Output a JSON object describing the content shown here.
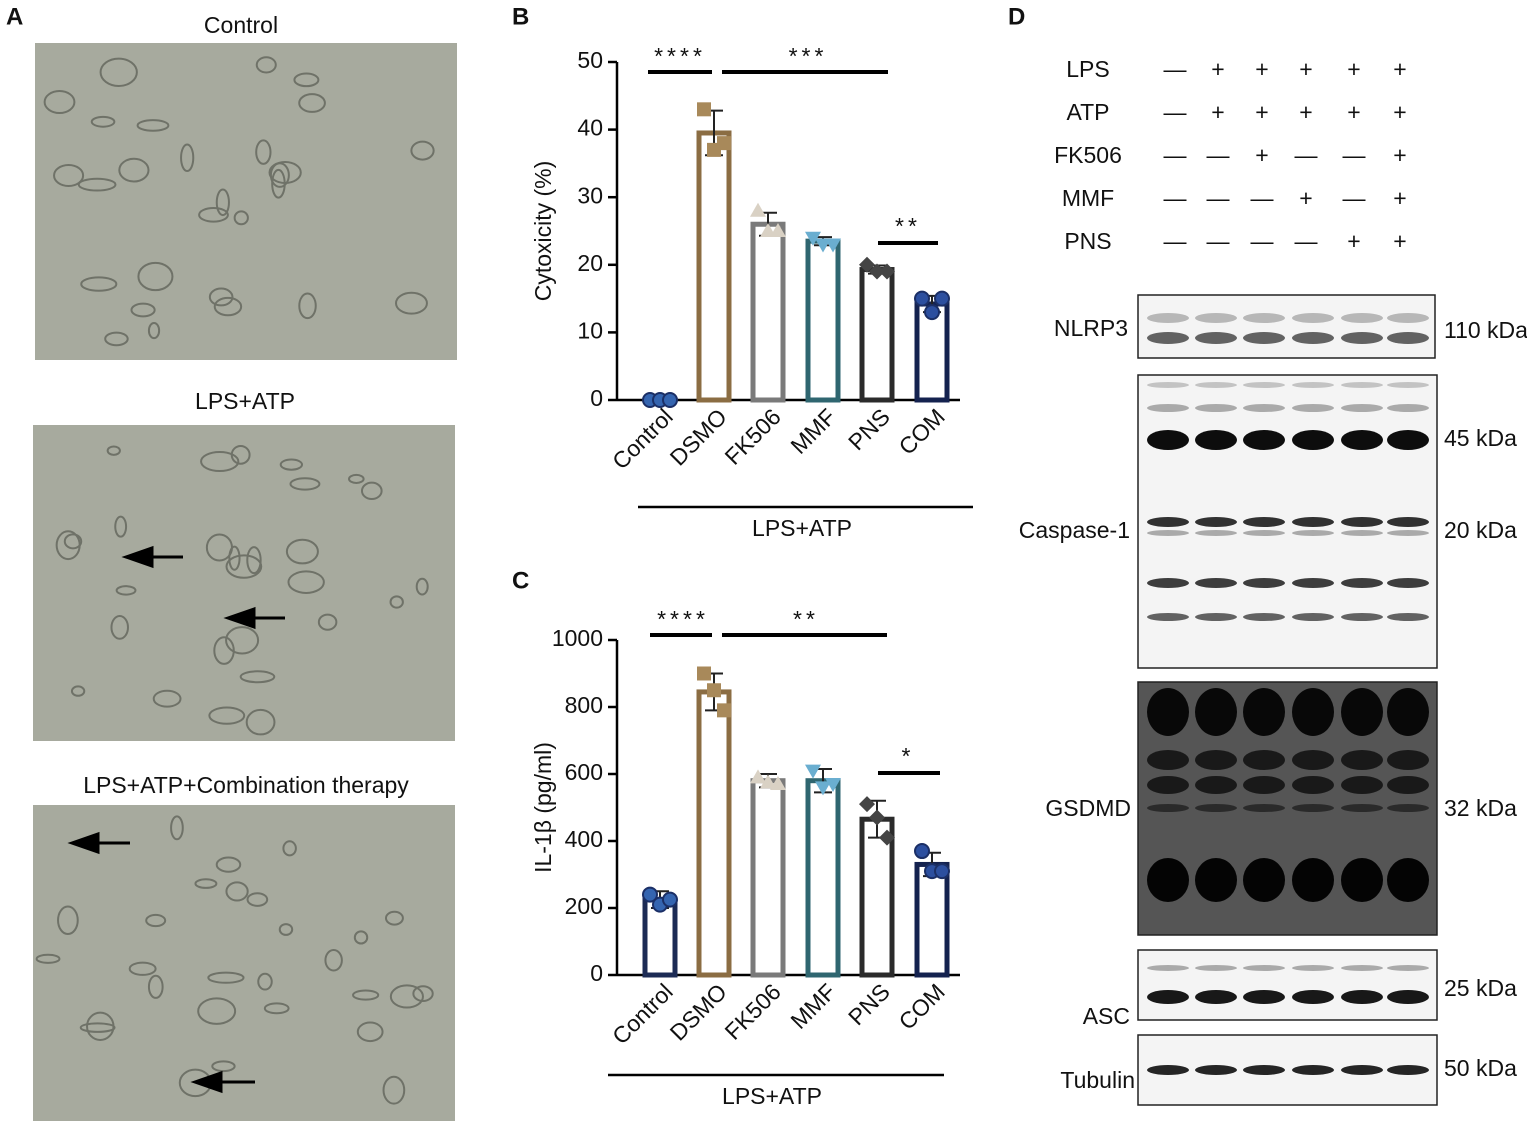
{
  "panels": {
    "a": {
      "letter": "A",
      "titles": [
        "Control",
        "LPS+ATP",
        "LPS+ATP+Combination therapy"
      ]
    },
    "d": {
      "letter": "D",
      "treatments": [
        {
          "label": "LPS",
          "signs": [
            "—",
            "+",
            "+",
            "+",
            "+",
            "+"
          ]
        },
        {
          "label": "ATP",
          "signs": [
            "—",
            "+",
            "+",
            "+",
            "+",
            "+"
          ]
        },
        {
          "label": "FK506",
          "signs": [
            "—",
            "—",
            "+",
            "—",
            "—",
            "+"
          ]
        },
        {
          "label": "MMF",
          "signs": [
            "—",
            "—",
            "—",
            "+",
            "—",
            "+"
          ]
        },
        {
          "label": "PNS",
          "signs": [
            "—",
            "—",
            "—",
            "—",
            "+",
            "+"
          ]
        }
      ],
      "blots": [
        {
          "name": "NLRP3",
          "sizes": [
            "110 kDa"
          ]
        },
        {
          "name": "Caspase-1",
          "sizes": [
            "45 kDa",
            "20 kDa"
          ]
        },
        {
          "name": "GSDMD",
          "sizes": [
            "32 kDa"
          ]
        },
        {
          "name": "ASC",
          "sizes": [
            "25 kDa"
          ]
        },
        {
          "name": "Tubulin",
          "sizes": [
            "50 kDa"
          ]
        }
      ]
    }
  },
  "chart_data": [
    {
      "type": "bar",
      "letter": "B",
      "y_label": "Cytoxicity (%)",
      "group_label": "LPS+ATP",
      "categories": [
        "Control",
        "DSMO",
        "FK506",
        "MMF",
        "PNS",
        "COM"
      ],
      "values": [
        0,
        39.5,
        26,
        23.5,
        19.3,
        14.2
      ],
      "errors": [
        0,
        3.3,
        1.7,
        0.6,
        0.6,
        1.2
      ],
      "points": [
        [
          0,
          0,
          0
        ],
        [
          43,
          37,
          38
        ],
        [
          28,
          25,
          25
        ],
        [
          24,
          23,
          23
        ],
        [
          20,
          19,
          19
        ],
        [
          15,
          13,
          15
        ]
      ],
      "colors": [
        "#1c2b55",
        "#8b6d43",
        "#7a7a7a",
        "#2f6670",
        "#2b2b2b",
        "#14224f"
      ],
      "point_colors": [
        "#3565b0",
        "#a8895a",
        "#d9d1c4",
        "#6aaed0",
        "#444444",
        "#2c4f9f"
      ],
      "annotations": [
        "****",
        "***",
        "**"
      ],
      "ylim": [
        0,
        50
      ],
      "yticks": [
        0,
        10,
        20,
        30,
        40,
        50
      ]
    },
    {
      "type": "bar",
      "letter": "C",
      "y_label": "IL-1β  (pg/ml)",
      "group_label": "LPS+ATP",
      "categories": [
        "Control",
        "DSMO",
        "FK506",
        "MMF",
        "PNS",
        "COM"
      ],
      "values": [
        225,
        845,
        580,
        580,
        465,
        330
      ],
      "errors": [
        25,
        55,
        20,
        35,
        55,
        35
      ],
      "points": [
        [
          240,
          210,
          225
        ],
        [
          900,
          850,
          790
        ],
        [
          590,
          575,
          570
        ],
        [
          610,
          560,
          570
        ],
        [
          510,
          470,
          410
        ],
        [
          370,
          310,
          310
        ]
      ],
      "colors": [
        "#1c2b55",
        "#8b6d43",
        "#7a7a7a",
        "#2f6670",
        "#2b2b2b",
        "#14224f"
      ],
      "point_colors": [
        "#3565b0",
        "#a8895a",
        "#d9d1c4",
        "#6aaed0",
        "#444444",
        "#2c4f9f"
      ],
      "annotations": [
        "****",
        "**",
        "*"
      ],
      "ylim": [
        0,
        1000
      ],
      "yticks": [
        0,
        200,
        400,
        600,
        800,
        1000
      ]
    }
  ]
}
